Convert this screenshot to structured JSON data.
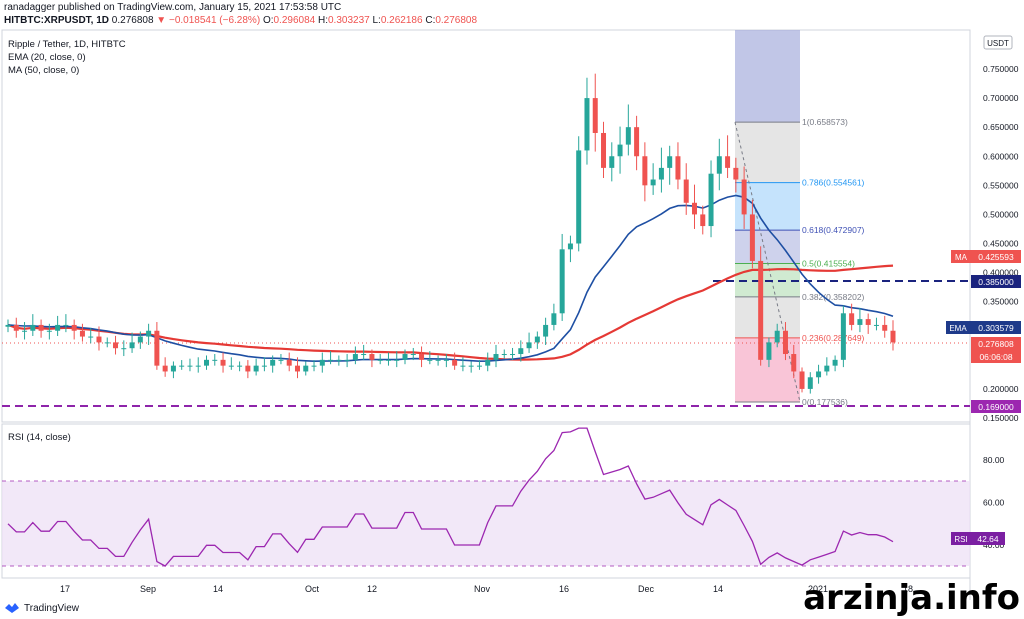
{
  "header": {
    "publisher_line": "ranadagger published on TradingView.com, January 15, 2021 17:53:58 UTC",
    "symbol": "HITBTC:XRPUSDT, 1D",
    "last": "0.276808",
    "change": "▼ −0.018541 (−6.28%)",
    "o_label": "O:",
    "o": "0.296084",
    "h_label": "H:",
    "h": "0.303237",
    "l_label": "L:",
    "l": "0.262186",
    "c_label": "C:",
    "c": "0.276808"
  },
  "legend": {
    "title": "Ripple / Tether, 1D, HITBTC",
    "ema": "EMA (20, close, 0)",
    "ma": "MA (50, close, 0)",
    "rsi": "RSI (14, close)"
  },
  "currency_badge": "USDT",
  "price_axis_ticks": [
    "0.750000",
    "0.700000",
    "0.650000",
    "0.600000",
    "0.550000",
    "0.500000",
    "0.450000",
    "0.400000",
    "0.350000",
    "0.300000",
    "0.250000",
    "0.200000",
    "0.150000"
  ],
  "rsi_axis_ticks": [
    "80.00",
    "60.00",
    "40.00"
  ],
  "time_axis_ticks": [
    "17",
    "Sep",
    "14",
    "Oct",
    "12",
    "Nov",
    "16",
    "Dec",
    "14",
    "2021",
    "18"
  ],
  "fib_levels": [
    {
      "ratio": "1",
      "value": "0.658573",
      "label": "1(0.658573)"
    },
    {
      "ratio": "0.786",
      "value": "0.554561",
      "label": "0.786(0.554561)"
    },
    {
      "ratio": "0.618",
      "value": "0.472907",
      "label": "0.618(0.472907)"
    },
    {
      "ratio": "0.5",
      "value": "0.415554",
      "label": "0.5(0.415554)"
    },
    {
      "ratio": "0.382",
      "value": "0.358202",
      "label": "0.382(0.358202)"
    },
    {
      "ratio": "0.236",
      "value": "0.287649",
      "label": "0.236(0.287649)"
    },
    {
      "ratio": "0",
      "value": "0.177536",
      "label": "0(0.177536)"
    }
  ],
  "price_badges": {
    "ma": {
      "label": "MA",
      "value": "0.425593",
      "color": "#ef5350"
    },
    "level_385": {
      "value": "0.385000",
      "color": "#1a237e"
    },
    "ema": {
      "label": "EMA",
      "value": "0.303579",
      "color": "#1e3a8a"
    },
    "last": {
      "value": "0.276808",
      "color": "#ef5350"
    },
    "countdown": {
      "value": "06:06:08",
      "color": "#ef5350"
    },
    "level_169": {
      "value": "0.169000",
      "color": "#9c27b0"
    },
    "rsi": {
      "label": "RSI",
      "value": "42.64",
      "color": "#7b1fa2"
    }
  },
  "footer": {
    "logo": "TradingView"
  },
  "watermark": "arzinja.info",
  "colors": {
    "up": "#26a69a",
    "down": "#ef5350",
    "ema": "#1e4fa3",
    "ma": "#e53935",
    "rsi": "#9c27b0",
    "dashed": "#7b1fa2",
    "level385": "#1a237e"
  },
  "chart_data": {
    "type": "candlestick",
    "title": "Ripple / Tether, 1D, HITBTC",
    "ylim": [
      0.13,
      0.8
    ],
    "x_ticks": [
      "17",
      "Sep",
      "14",
      "Oct",
      "12",
      "Nov",
      "16",
      "Dec",
      "14",
      "2021",
      "18"
    ],
    "ohlc_approx_close": [
      0.31,
      0.3,
      0.3,
      0.31,
      0.3,
      0.3,
      0.31,
      0.31,
      0.3,
      0.29,
      0.29,
      0.28,
      0.28,
      0.27,
      0.27,
      0.28,
      0.29,
      0.3,
      0.24,
      0.23,
      0.24,
      0.24,
      0.24,
      0.24,
      0.25,
      0.25,
      0.24,
      0.24,
      0.24,
      0.23,
      0.24,
      0.24,
      0.25,
      0.25,
      0.24,
      0.23,
      0.24,
      0.24,
      0.25,
      0.25,
      0.25,
      0.25,
      0.26,
      0.26,
      0.25,
      0.25,
      0.25,
      0.25,
      0.26,
      0.26,
      0.25,
      0.25,
      0.25,
      0.25,
      0.24,
      0.24,
      0.24,
      0.24,
      0.25,
      0.26,
      0.26,
      0.26,
      0.27,
      0.28,
      0.29,
      0.31,
      0.33,
      0.44,
      0.45,
      0.61,
      0.7,
      0.64,
      0.58,
      0.6,
      0.62,
      0.65,
      0.6,
      0.55,
      0.56,
      0.58,
      0.6,
      0.56,
      0.52,
      0.5,
      0.48,
      0.57,
      0.6,
      0.58,
      0.56,
      0.5,
      0.42,
      0.25,
      0.28,
      0.3,
      0.26,
      0.23,
      0.2,
      0.22,
      0.23,
      0.24,
      0.25,
      0.33,
      0.31,
      0.32,
      0.31,
      0.31,
      0.3,
      0.28
    ],
    "series": [
      {
        "name": "EMA (20, close, 0)",
        "last": 0.303579
      },
      {
        "name": "MA (50, close, 0)",
        "last": 0.425593
      },
      {
        "name": "RSI (14, close)",
        "last": 42.64
      }
    ],
    "horizontal_lines": [
      0.385,
      0.169
    ]
  }
}
